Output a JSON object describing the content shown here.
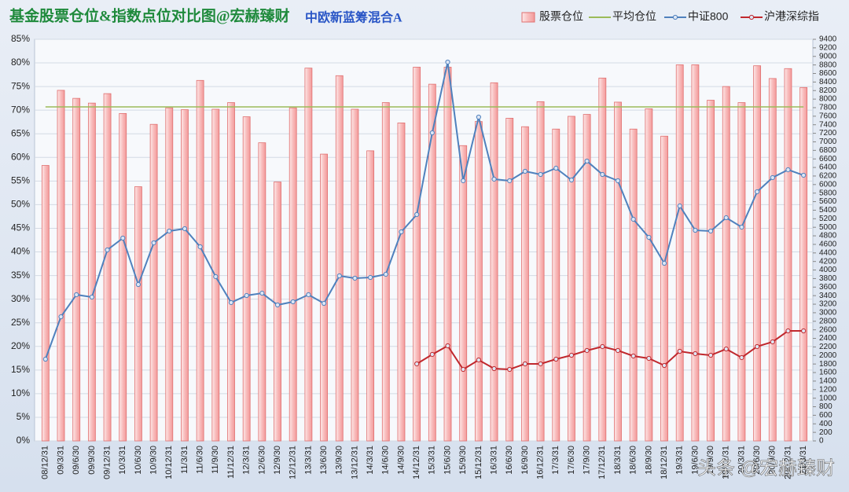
{
  "chart_data": {
    "type": "combo",
    "title": "基金股票仓位&指数点位对比图@宏赫臻财",
    "subtitle": "中欧新蓝筹混合A",
    "watermark": "头条 @宏赫臻财",
    "categories": [
      "08/12/31",
      "09/3/31",
      "09/6/30",
      "09/9/30",
      "09/12/31",
      "10/3/31",
      "10/6/30",
      "10/9/30",
      "10/12/31",
      "11/3/31",
      "11/6/30",
      "11/9/30",
      "11/12/31",
      "12/3/31",
      "12/6/30",
      "12/9/30",
      "12/12/31",
      "13/3/31",
      "13/6/30",
      "13/9/30",
      "13/12/31",
      "14/3/31",
      "14/6/30",
      "14/9/30",
      "14/12/31",
      "15/3/31",
      "15/6/30",
      "15/9/30",
      "15/12/31",
      "16/3/31",
      "16/6/30",
      "16/9/30",
      "16/12/31",
      "17/3/31",
      "17/6/30",
      "17/9/30",
      "17/12/31",
      "18/3/31",
      "18/6/30",
      "18/9/30",
      "18/12/31",
      "19/3/31",
      "19/6/30",
      "19/9/30",
      "19/12/31",
      "20/3/31",
      "20/6/30",
      "20/9/30",
      "20/12/31",
      "21/3/31"
    ],
    "series": [
      {
        "name": "股票仓位",
        "type": "bar",
        "color": "#f4a6a6",
        "values": [
          58.3,
          74.2,
          72.5,
          71.5,
          73.5,
          69.3,
          53.8,
          67,
          70.5,
          70.1,
          76.3,
          70.2,
          71.6,
          68.6,
          63.1,
          54.8,
          70.5,
          78.9,
          60.7,
          77.3,
          70.2,
          61.4,
          71.6,
          67.3,
          79.1,
          75.5,
          79.1,
          62.5,
          67.6,
          75.8,
          68.3,
          66.5,
          71.8,
          66,
          68.7,
          69.1,
          76.8,
          71.7,
          66,
          70.3,
          64.5,
          79.6,
          79.6,
          72.1,
          75,
          71.6,
          79.4,
          76.7,
          78.8,
          74.8
        ]
      },
      {
        "name": "平均仓位",
        "type": "hline",
        "color": "#9bbb59",
        "value": 70.7
      },
      {
        "name": "中证800",
        "type": "line",
        "axis": "y2",
        "color": "#4f81bd",
        "values": [
          1913,
          2906,
          3422,
          3366,
          4470,
          4746,
          3660,
          4636,
          4912,
          4967,
          4544,
          3845,
          3238,
          3403,
          3458,
          3182,
          3256,
          3422,
          3219,
          3863,
          3808,
          3826,
          3900,
          4893,
          5298,
          7211,
          8867,
          6089,
          7579,
          6126,
          6089,
          6310,
          6236,
          6383,
          6107,
          6549,
          6236,
          6089,
          5188,
          4765,
          4157,
          5500,
          4930,
          4912,
          5224,
          5004,
          5832,
          6163,
          6347,
          6218
        ]
      },
      {
        "name": "沪港深综指",
        "type": "line",
        "axis": "y2",
        "color": "#c0282d",
        "values": [
          null,
          null,
          null,
          null,
          null,
          null,
          null,
          null,
          null,
          null,
          null,
          null,
          null,
          null,
          null,
          null,
          null,
          null,
          null,
          null,
          null,
          null,
          null,
          null,
          1803,
          2024,
          2226,
          1674,
          1895,
          1692,
          1674,
          1803,
          1803,
          1913,
          2005,
          2116,
          2208,
          2116,
          1987,
          1932,
          1766,
          2097,
          2042,
          2005,
          2152,
          1950,
          2208,
          2318,
          2575,
          2575
        ]
      }
    ],
    "ylim": [
      0,
      85
    ],
    "yticks": [
      {
        "value": 0,
        "label": "0%"
      },
      {
        "value": 5,
        "label": "5%"
      },
      {
        "value": 10,
        "label": "10%"
      },
      {
        "value": 15,
        "label": "15%"
      },
      {
        "value": 20,
        "label": "20%"
      },
      {
        "value": 25,
        "label": "25%"
      },
      {
        "value": 30,
        "label": "30%"
      },
      {
        "value": 35,
        "label": "35%"
      },
      {
        "value": 40,
        "label": "40%"
      },
      {
        "value": 45,
        "label": "45%"
      },
      {
        "value": 50,
        "label": "50%"
      },
      {
        "value": 55,
        "label": "55%"
      },
      {
        "value": 60,
        "label": "60%"
      },
      {
        "value": 65,
        "label": "65%"
      },
      {
        "value": 70,
        "label": "70%"
      },
      {
        "value": 75,
        "label": "75%"
      },
      {
        "value": 80,
        "label": "80%"
      },
      {
        "value": 85,
        "label": "85%"
      }
    ],
    "y2lim": [
      0,
      9400
    ],
    "y2ticks": [
      0,
      200,
      400,
      600,
      800,
      1000,
      1200,
      1400,
      1600,
      1800,
      2000,
      2200,
      2400,
      2600,
      2800,
      3000,
      3200,
      3400,
      3600,
      3800,
      4000,
      4200,
      4400,
      4600,
      4800,
      5000,
      5200,
      5400,
      5600,
      5800,
      6000,
      6200,
      6400,
      6600,
      6800,
      7000,
      7200,
      7400,
      7600,
      7800,
      8000,
      8200,
      8400,
      8600,
      8800,
      9000,
      9200,
      9400
    ],
    "grid": true
  }
}
